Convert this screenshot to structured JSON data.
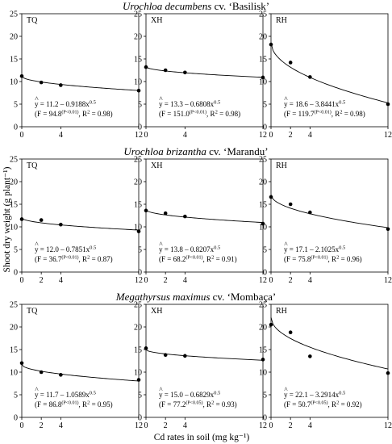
{
  "figure": {
    "y_axis_label": "Shoot dry weight  (g plant⁻¹)",
    "x_axis_label": "Cd rates in soil  (mg kg⁻¹)"
  },
  "chart_data": [
    {
      "type": "scatter",
      "row": 0,
      "col": 0,
      "row_title": "Urochloa decumbens cv. ‘Basilisk’",
      "panel_label": "TQ",
      "x": [
        0,
        2,
        4,
        12
      ],
      "y": [
        11.2,
        9.8,
        9.2,
        8.0
      ],
      "fit": {
        "a": 11.2,
        "b": 0.9188
      },
      "equation": "y = 11.2 – 0.9188x",
      "stats_pre": "(F = 94.8",
      "p": "(P<0.01)",
      "stats_post": ", R",
      "r2": " = 0.98)",
      "xticks": [
        0,
        4,
        12
      ],
      "yticks": [
        0,
        5,
        10,
        15,
        20,
        25
      ],
      "xlim": [
        0,
        12
      ],
      "ylim": [
        0,
        25
      ]
    },
    {
      "type": "scatter",
      "row": 0,
      "col": 1,
      "panel_label": "XH",
      "x": [
        0,
        2,
        4,
        12
      ],
      "y": [
        13.2,
        12.5,
        12.0,
        10.9
      ],
      "fit": {
        "a": 13.3,
        "b": 0.6808
      },
      "equation": "y = 13.3 – 0.6808x",
      "stats_pre": "(F = 151.0",
      "p": "(P<0.01)",
      "stats_post": ", R",
      "r2": " = 0.98)",
      "xticks": [
        0,
        4,
        12
      ],
      "yticks": [
        0,
        5,
        10,
        15,
        20,
        25
      ],
      "xlim": [
        0,
        12
      ],
      "ylim": [
        0,
        25
      ]
    },
    {
      "type": "scatter",
      "row": 0,
      "col": 2,
      "panel_label": "RH",
      "x": [
        0,
        2,
        4,
        12
      ],
      "y": [
        18.2,
        14.2,
        11.0,
        5.0
      ],
      "fit": {
        "a": 18.6,
        "b": 3.8441
      },
      "equation": "y = 18.6 – 3.8441x",
      "stats_pre": "(F = 119.7",
      "p": "(P<0.01)",
      "stats_post": ", R",
      "r2": " = 0.98)",
      "xticks": [
        0,
        2,
        4,
        12
      ],
      "yticks": [
        0,
        5,
        10,
        15,
        20,
        25
      ],
      "xlim": [
        0,
        12
      ],
      "ylim": [
        0,
        25
      ]
    },
    {
      "type": "scatter",
      "row": 1,
      "col": 0,
      "row_title": "Urochloa brizantha cv. ‘Marandu’",
      "panel_label": "TQ",
      "x": [
        0,
        2,
        4,
        12
      ],
      "y": [
        11.7,
        11.5,
        10.5,
        9.0
      ],
      "fit": {
        "a": 12.0,
        "b": 0.7851
      },
      "equation": "y = 12.0 – 0.7851x",
      "stats_pre": "(F = 36.7",
      "p": "(P<0.01)",
      "stats_post": ", R",
      "r2": " = 0.87)",
      "xticks": [
        0,
        2,
        4,
        12
      ],
      "yticks": [
        0,
        5,
        10,
        15,
        20,
        25
      ],
      "xlim": [
        0,
        12
      ],
      "ylim": [
        0,
        25
      ]
    },
    {
      "type": "scatter",
      "row": 1,
      "col": 1,
      "panel_label": "XH",
      "x": [
        0,
        2,
        4,
        12
      ],
      "y": [
        13.6,
        13.0,
        12.3,
        10.7
      ],
      "fit": {
        "a": 13.8,
        "b": 0.8207
      },
      "equation": "y = 13.8 – 0.8207x",
      "stats_pre": "(F = 68.2",
      "p": "(P<0.01)",
      "stats_post": ", R",
      "r2": " = 0.91)",
      "xticks": [
        0,
        2,
        4,
        12
      ],
      "yticks": [
        0,
        5,
        10,
        15,
        20,
        25
      ],
      "xlim": [
        0,
        12
      ],
      "ylim": [
        0,
        25
      ]
    },
    {
      "type": "scatter",
      "row": 1,
      "col": 2,
      "panel_label": "RH",
      "x": [
        0,
        2,
        4,
        12
      ],
      "y": [
        16.6,
        15.0,
        13.2,
        9.5
      ],
      "fit": {
        "a": 17.1,
        "b": 2.1025
      },
      "equation": "y = 17.1 – 2.1025x",
      "stats_pre": "(F = 75.8",
      "p": "(P<0.01)",
      "stats_post": ", R",
      "r2": " = 0.96)",
      "xticks": [
        0,
        2,
        4,
        12
      ],
      "yticks": [
        0,
        5,
        10,
        15,
        20,
        25
      ],
      "xlim": [
        0,
        12
      ],
      "ylim": [
        0,
        25
      ]
    },
    {
      "type": "scatter",
      "row": 2,
      "col": 0,
      "row_title": "Megathyrsus maximus cv. ‘Mombaça’",
      "panel_label": "TQ",
      "x": [
        0,
        2,
        4,
        12
      ],
      "y": [
        12.0,
        10.0,
        9.4,
        8.3
      ],
      "fit": {
        "a": 11.7,
        "b": 1.0589
      },
      "equation": "y = 11.7 – 1.0589x",
      "stats_pre": "(F = 86.8",
      "p": "(P<0.01)",
      "stats_post": ", R",
      "r2": " = 0.95)",
      "xticks": [
        0,
        2,
        4,
        12
      ],
      "yticks": [
        0,
        5,
        10,
        15,
        20,
        25
      ],
      "xlim": [
        0,
        12
      ],
      "ylim": [
        0,
        25
      ]
    },
    {
      "type": "scatter",
      "row": 2,
      "col": 1,
      "panel_label": "XH",
      "x": [
        0,
        2,
        4,
        12
      ],
      "y": [
        15.3,
        13.8,
        13.6,
        12.8
      ],
      "fit": {
        "a": 15.0,
        "b": 0.6829
      },
      "equation": "y = 15.0 – 0.6829x",
      "stats_pre": "(F = 77.2",
      "p": "(P<0.05)",
      "stats_post": ", R",
      "r2": " = 0.93)",
      "xticks": [
        0,
        2,
        4,
        12
      ],
      "yticks": [
        0,
        5,
        10,
        15,
        20,
        25
      ],
      "xlim": [
        0,
        12
      ],
      "ylim": [
        0,
        25
      ]
    },
    {
      "type": "scatter",
      "row": 2,
      "col": 2,
      "panel_label": "RH",
      "x": [
        0,
        2,
        4,
        12
      ],
      "y": [
        20.5,
        18.8,
        13.5,
        9.8
      ],
      "fit": {
        "a": 22.1,
        "b": 3.2914
      },
      "equation": "y = 22.1 – 3.2914x",
      "stats_pre": "(F = 50.7",
      "p": "(P<0.05)",
      "stats_post": ", R",
      "r2": " = 0.92)",
      "xticks": [
        0,
        2,
        4,
        12
      ],
      "yticks": [
        0,
        5,
        10,
        15,
        20,
        25
      ],
      "xlim": [
        0,
        12
      ],
      "ylim": [
        0,
        25
      ]
    }
  ]
}
